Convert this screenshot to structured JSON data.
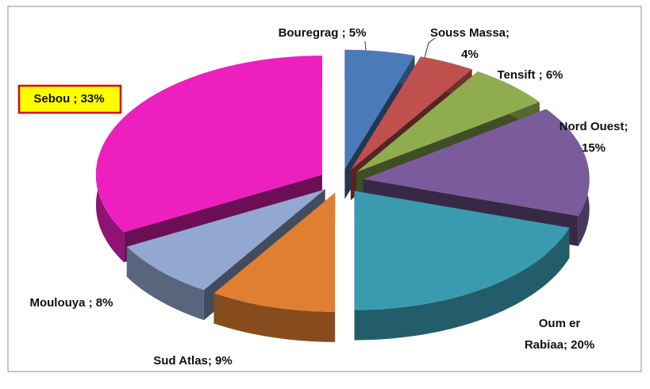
{
  "chart_data": {
    "type": "pie3d",
    "values": [
      5,
      4,
      6,
      15,
      20,
      9,
      8,
      33
    ],
    "value_labels": [
      "Bouregrag ; 5%",
      "Souss Massa;\n4%",
      "Tensift ; 6%",
      "Nord Ouest;\n15%",
      "Oum er\nRabiaa; 20%",
      "Sud Atlas; 9%",
      "Moulouya ; 8%",
      "Sebou ; 33%"
    ],
    "colors": [
      "#4a7ab8",
      "#c0504d",
      "#8fad4f",
      "#7a5c9c",
      "#3a9bb0",
      "#e07f32",
      "#93a8d0",
      "#ee1fbf"
    ]
  }
}
